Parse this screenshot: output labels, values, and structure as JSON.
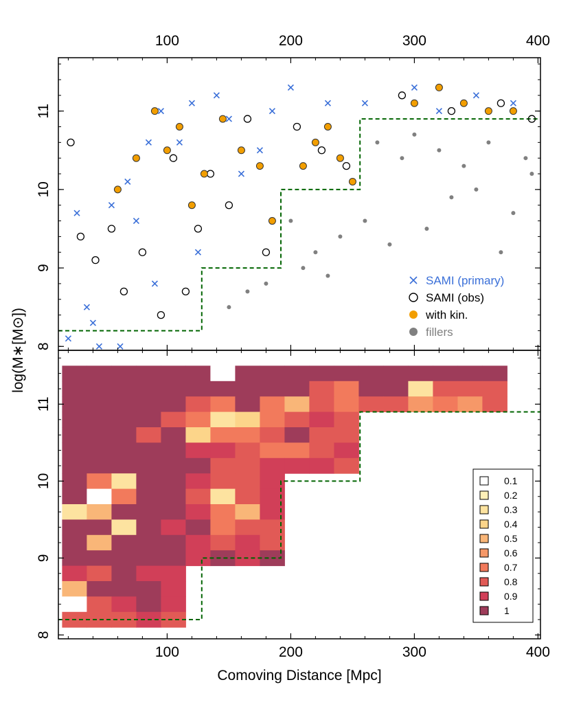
{
  "chart_data": [
    {
      "type": "scatter",
      "panel": "top",
      "xlim": [
        12,
        402
      ],
      "ylim": [
        7.95,
        11.68
      ],
      "top_axis_ticks": [
        "100",
        "200",
        "300",
        "400"
      ],
      "y_ticks": [
        "8",
        "9",
        "10",
        "11"
      ],
      "ylabel": "log(M∗[M⊙])",
      "legend_position": "lower-right",
      "colors": {
        "primary": "#3a6fd8",
        "obs_edge": "#000000",
        "kin": "#f29e00",
        "fillers": "#808080",
        "limit": "#006400"
      },
      "selection_limit": {
        "x": [
          12,
          128,
          128,
          192,
          192,
          256,
          256,
          402
        ],
        "y": [
          8.2,
          8.2,
          9.0,
          9.0,
          10.0,
          10.0,
          10.9,
          10.9
        ]
      },
      "legend": [
        {
          "label": "SAMI (primary)",
          "marker": "x",
          "color": "#3a6fd8"
        },
        {
          "label": "SAMI (obs)",
          "marker": "open-circle",
          "color": "#000000"
        },
        {
          "label": "with kin.",
          "marker": "filled-circle",
          "color": "#f29e00"
        },
        {
          "label": "fillers",
          "marker": "filled-circle",
          "color": "#808080"
        }
      ],
      "series": [
        {
          "name": "SAMI (primary)",
          "x": [
            20,
            27,
            35,
            45,
            55,
            62,
            68,
            75,
            85,
            95,
            110,
            120,
            140,
            150,
            175,
            185,
            200,
            230,
            260,
            300,
            320,
            350,
            380,
            40,
            90,
            125,
            160
          ],
          "y": [
            8.1,
            9.7,
            8.5,
            8.0,
            9.8,
            8.0,
            10.1,
            9.6,
            10.6,
            11.0,
            10.6,
            11.1,
            11.2,
            10.9,
            10.5,
            11.0,
            11.3,
            11.1,
            11.1,
            11.3,
            11.0,
            11.2,
            11.1,
            8.3,
            8.8,
            9.2,
            10.2
          ]
        },
        {
          "name": "SAMI (obs)",
          "x": [
            22,
            30,
            42,
            55,
            65,
            80,
            95,
            105,
            115,
            125,
            135,
            150,
            165,
            180,
            205,
            225,
            245,
            290,
            330,
            370,
            395
          ],
          "y": [
            10.6,
            9.4,
            9.1,
            9.5,
            8.7,
            9.2,
            8.4,
            10.4,
            8.7,
            9.5,
            10.2,
            9.8,
            10.9,
            9.2,
            10.8,
            10.5,
            10.3,
            11.2,
            11.0,
            11.1,
            10.9
          ]
        },
        {
          "name": "with kin.",
          "x": [
            60,
            75,
            90,
            100,
            110,
            120,
            130,
            145,
            160,
            175,
            185,
            210,
            220,
            230,
            240,
            250,
            300,
            320,
            340,
            360,
            380
          ],
          "y": [
            10.0,
            10.4,
            11.0,
            10.5,
            10.8,
            9.8,
            10.2,
            10.9,
            10.5,
            10.3,
            9.6,
            10.3,
            10.6,
            10.8,
            10.4,
            10.1,
            11.1,
            11.3,
            11.1,
            11.0,
            11.0
          ]
        },
        {
          "name": "fillers",
          "x": [
            150,
            165,
            180,
            200,
            210,
            220,
            230,
            240,
            260,
            270,
            280,
            290,
            300,
            310,
            320,
            330,
            340,
            350,
            360,
            370,
            380,
            390,
            395
          ],
          "y": [
            8.5,
            8.7,
            8.8,
            9.6,
            9.0,
            9.2,
            8.9,
            9.4,
            9.6,
            10.6,
            9.3,
            10.4,
            10.7,
            9.5,
            10.5,
            9.9,
            10.3,
            10.0,
            10.6,
            9.2,
            9.7,
            10.4,
            10.2
          ]
        }
      ]
    },
    {
      "type": "heatmap",
      "panel": "bottom",
      "xlim": [
        12,
        402
      ],
      "ylim": [
        7.95,
        11.7
      ],
      "bin_width_x": 20,
      "bin_width_y": 0.2,
      "x_ticks": [
        "100",
        "200",
        "300",
        "400"
      ],
      "y_ticks": [
        "8",
        "9",
        "10",
        "11"
      ],
      "xlabel": "Comoving Distance [Mpc]",
      "colorbar_labels": [
        "0.1",
        "0.2",
        "0.3",
        "0.4",
        "0.5",
        "0.6",
        "0.7",
        "0.8",
        "0.9",
        "1"
      ],
      "colorbar_colors": [
        "#ffffff",
        "#fef0b8",
        "#fde3a0",
        "#fcd58a",
        "#f9b678",
        "#f69868",
        "#f27a5c",
        "#e15a56",
        "#d13f58",
        "#9e3c5a"
      ],
      "x_edges": [
        15,
        35,
        55,
        75,
        95,
        115,
        135,
        155,
        175,
        195,
        215,
        235,
        255,
        275,
        295,
        315,
        335,
        355,
        375
      ],
      "rows": [
        {
          "y_low": 11.3,
          "values": [
            1,
            1,
            1,
            1,
            1,
            1,
            0.1,
            1,
            1,
            1,
            1,
            1,
            1,
            1,
            1,
            1,
            1,
            1
          ]
        },
        {
          "y_low": 11.1,
          "values": [
            1,
            1,
            1,
            1,
            1,
            1,
            1,
            1,
            1,
            1,
            0.8,
            0.7,
            1,
            1,
            0.3,
            0.8,
            0.8,
            0.8
          ]
        },
        {
          "y_low": 10.9,
          "values": [
            1,
            1,
            1,
            1,
            1,
            0.8,
            0.7,
            1,
            0.7,
            0.5,
            0.8,
            0.7,
            0.8,
            0.8,
            0.6,
            0.7,
            0.6,
            0.8
          ]
        },
        {
          "y_low": 10.7,
          "values": [
            1,
            1,
            1,
            1,
            0.8,
            0.7,
            0.3,
            0.4,
            0.7,
            0.8,
            0.9,
            0.8
          ]
        },
        {
          "y_low": 10.5,
          "values": [
            1,
            1,
            1,
            0.8,
            1,
            0.4,
            0.7,
            0.7,
            0.8,
            1,
            0.8,
            0.8
          ]
        },
        {
          "y_low": 10.3,
          "values": [
            1,
            1,
            1,
            1,
            1,
            0.9,
            0.9,
            0.8,
            0.7,
            0.7,
            0.8,
            0.9
          ]
        },
        {
          "y_low": 10.1,
          "values": [
            1,
            1,
            1,
            1,
            1,
            1,
            0.8,
            0.8,
            0.9,
            0.9,
            0.9,
            0.8
          ]
        },
        {
          "y_low": 9.9,
          "values": [
            1,
            0.7,
            0.3,
            1,
            1,
            0.9,
            0.8,
            0.8,
            0.9
          ]
        },
        {
          "y_low": 9.7,
          "values": [
            1,
            0.1,
            0.7,
            1,
            1,
            0.8,
            0.3,
            0.8,
            0.9
          ]
        },
        {
          "y_low": 9.5,
          "values": [
            0.3,
            0.5,
            1,
            1,
            1,
            0.9,
            0.7,
            0.5,
            0.9
          ]
        },
        {
          "y_low": 9.3,
          "values": [
            1,
            1,
            0.3,
            1,
            0.9,
            1,
            0.7,
            0.8,
            0.8
          ]
        },
        {
          "y_low": 9.1,
          "values": [
            1,
            0.5,
            1,
            1,
            1,
            0.9,
            0.8,
            0.9,
            0.8
          ]
        },
        {
          "y_low": 8.9,
          "values": [
            1,
            1,
            1,
            1,
            1,
            0.9,
            1,
            0.9,
            1
          ]
        },
        {
          "y_low": 8.7,
          "values": [
            0.9,
            0.8,
            1,
            0.9,
            0.9
          ]
        },
        {
          "y_low": 8.5,
          "values": [
            0.5,
            1,
            1,
            1,
            0.9
          ]
        },
        {
          "y_low": 8.3,
          "values": [
            0.1,
            0.8,
            0.9,
            1,
            0.9
          ]
        },
        {
          "y_low": 8.1,
          "values": [
            0.8,
            0.8,
            0.8,
            0.9,
            0.8
          ]
        }
      ]
    }
  ]
}
